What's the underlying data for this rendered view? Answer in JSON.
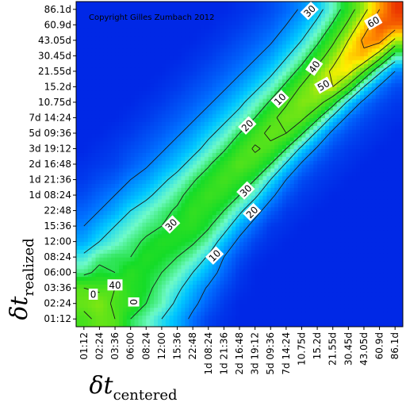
{
  "chart_data": {
    "type": "heatmap",
    "title": "",
    "copyright": "Copyright Gilles Zumbach 2012",
    "xlabel": {
      "main": "δt",
      "sub": "centered"
    },
    "ylabel": {
      "main": "δt",
      "sub": "realized"
    },
    "x_ticks": [
      "01:12",
      "02:24",
      "03:36",
      "06:00",
      "08:24",
      "12:00",
      "15:36",
      "22:48",
      "1d 08:24",
      "1d 21:36",
      "2d 16:48",
      "3d 19:12",
      "5d 09:36",
      "7d 14:24",
      "10.75d",
      "15.2d",
      "21.55d",
      "30.45d",
      "43.05d",
      "60.9d",
      "86.1d"
    ],
    "y_ticks": [
      "01:12",
      "02:24",
      "03:36",
      "06:00",
      "08:24",
      "12:00",
      "15:36",
      "22:48",
      "1d 08:24",
      "1d 21:36",
      "2d 16:48",
      "3d 19:12",
      "5d 09:36",
      "7d 14:24",
      "10.75d",
      "15.2d",
      "21.55d",
      "30.45d",
      "43.05d",
      "60.9d",
      "86.1d"
    ],
    "contour_levels": [
      0,
      10,
      20,
      30,
      40,
      50,
      60
    ],
    "contour_labels": [
      {
        "text": "0",
        "x": 3.2,
        "y": 1.1,
        "angle": 90
      },
      {
        "text": "0",
        "x": 0.6,
        "y": 1.6,
        "angle": 0
      },
      {
        "text": "10",
        "x": 8.4,
        "y": 4.1,
        "angle": -45
      },
      {
        "text": "10",
        "x": 12.6,
        "y": 14.2,
        "angle": -45
      },
      {
        "text": "20",
        "x": 10.8,
        "y": 6.9,
        "angle": -45
      },
      {
        "text": "20",
        "x": 10.5,
        "y": 12.5,
        "angle": -45
      },
      {
        "text": "30",
        "x": 5.6,
        "y": 6.1,
        "angle": -45
      },
      {
        "text": "30",
        "x": 10.4,
        "y": 8.3,
        "angle": -45
      },
      {
        "text": "30",
        "x": 14.5,
        "y": 19.9,
        "angle": -45
      },
      {
        "text": "40",
        "x": 2.0,
        "y": 2.2,
        "angle": 0
      },
      {
        "text": "40",
        "x": 14.8,
        "y": 16.3,
        "angle": -55
      },
      {
        "text": "50",
        "x": 15.4,
        "y": 15.1,
        "angle": -30
      },
      {
        "text": "60",
        "x": 18.6,
        "y": 19.2,
        "angle": -30
      }
    ],
    "z_grid": [
      [
        38,
        42,
        40,
        30,
        26,
        20,
        15,
        8,
        3,
        1,
        0,
        0,
        0,
        0,
        0,
        0,
        0,
        0,
        0,
        0,
        0
      ],
      [
        42,
        45,
        38,
        36,
        30,
        26,
        18,
        12,
        6,
        2,
        0,
        0,
        0,
        0,
        0,
        0,
        0,
        0,
        0,
        0,
        0
      ],
      [
        40,
        38,
        40,
        34,
        32,
        27,
        22,
        15,
        9,
        4,
        1,
        0,
        0,
        0,
        0,
        0,
        0,
        0,
        0,
        0,
        0
      ],
      [
        28,
        32,
        30,
        35,
        32,
        30,
        26,
        20,
        14,
        7,
        2,
        0,
        0,
        0,
        0,
        0,
        0,
        0,
        0,
        0,
        0
      ],
      [
        22,
        28,
        30,
        30,
        34,
        32,
        30,
        26,
        19,
        10,
        4,
        1,
        0,
        0,
        0,
        0,
        0,
        0,
        0,
        0,
        0
      ],
      [
        14,
        20,
        24,
        28,
        31,
        34,
        33,
        31,
        26,
        16,
        8,
        3,
        1,
        0,
        0,
        0,
        0,
        0,
        0,
        0,
        0
      ],
      [
        10,
        15,
        20,
        24,
        28,
        30,
        34,
        35,
        31,
        24,
        14,
        7,
        2,
        1,
        0,
        0,
        0,
        0,
        0,
        0,
        0
      ],
      [
        7,
        10,
        14,
        20,
        24,
        28,
        31,
        36,
        34,
        30,
        22,
        13,
        6,
        2,
        1,
        0,
        0,
        0,
        0,
        0,
        0
      ],
      [
        4,
        7,
        10,
        14,
        18,
        23,
        28,
        33,
        37,
        35,
        30,
        22,
        12,
        5,
        2,
        1,
        0,
        0,
        0,
        0,
        0
      ],
      [
        2,
        4,
        6,
        10,
        13,
        18,
        23,
        29,
        34,
        38,
        35,
        30,
        20,
        10,
        4,
        2,
        1,
        0,
        0,
        0,
        0
      ],
      [
        1,
        2,
        3,
        6,
        9,
        13,
        17,
        23,
        29,
        35,
        40,
        37,
        30,
        19,
        9,
        4,
        2,
        1,
        0,
        0,
        0
      ],
      [
        0,
        1,
        2,
        4,
        6,
        9,
        13,
        17,
        23,
        29,
        36,
        41,
        38,
        30,
        18,
        9,
        4,
        2,
        1,
        0,
        0
      ],
      [
        0,
        0,
        1,
        2,
        4,
        6,
        9,
        13,
        18,
        23,
        30,
        37,
        42,
        40,
        31,
        18,
        8,
        4,
        2,
        1,
        0
      ],
      [
        0,
        0,
        0,
        1,
        2,
        4,
        6,
        9,
        13,
        18,
        23,
        30,
        38,
        43,
        42,
        32,
        18,
        8,
        4,
        2,
        1
      ],
      [
        0,
        0,
        0,
        0,
        1,
        2,
        4,
        6,
        9,
        13,
        18,
        24,
        31,
        39,
        45,
        44,
        34,
        18,
        8,
        4,
        2
      ],
      [
        0,
        0,
        0,
        0,
        0,
        1,
        2,
        4,
        6,
        9,
        13,
        18,
        24,
        32,
        41,
        48,
        50,
        38,
        20,
        9,
        4
      ],
      [
        0,
        0,
        0,
        0,
        0,
        0,
        1,
        2,
        4,
        6,
        9,
        13,
        18,
        25,
        33,
        43,
        52,
        53,
        40,
        22,
        10
      ],
      [
        0,
        0,
        0,
        0,
        0,
        0,
        0,
        1,
        2,
        4,
        6,
        9,
        13,
        19,
        26,
        35,
        45,
        56,
        58,
        45,
        26
      ],
      [
        0,
        0,
        0,
        0,
        0,
        0,
        0,
        0,
        1,
        2,
        4,
        6,
        9,
        14,
        20,
        28,
        38,
        50,
        62,
        63,
        48
      ],
      [
        0,
        0,
        0,
        0,
        0,
        0,
        0,
        0,
        0,
        1,
        2,
        4,
        6,
        10,
        15,
        22,
        31,
        42,
        55,
        67,
        66
      ],
      [
        0,
        0,
        0,
        0,
        0,
        0,
        0,
        0,
        0,
        0,
        1,
        2,
        4,
        7,
        11,
        17,
        25,
        35,
        47,
        60,
        70
      ]
    ]
  }
}
